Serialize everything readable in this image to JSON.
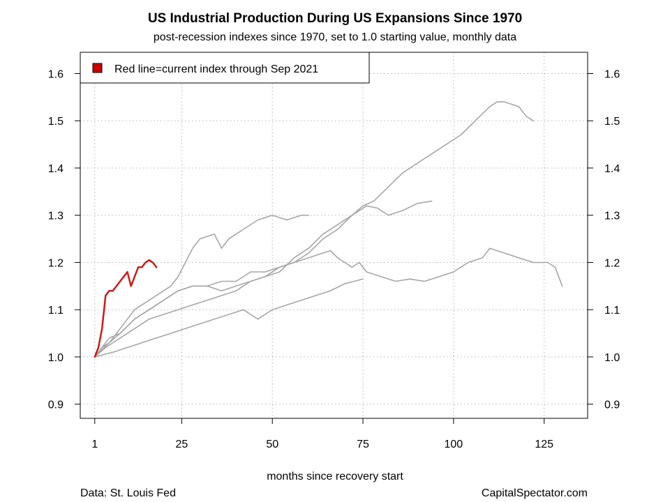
{
  "chart_data": {
    "type": "line",
    "title": "US Industrial Production During US Expansions Since 1970",
    "subtitle": "post-recession indexes since 1970, set to 1.0 starting value, monthly data",
    "xlabel": "months since recovery start",
    "ylabel": "",
    "xlim": [
      -3,
      137
    ],
    "ylim": [
      0.87,
      1.645
    ],
    "x_ticks": [
      1,
      25,
      50,
      75,
      100,
      125
    ],
    "y_ticks": [
      0.9,
      1.0,
      1.1,
      1.2,
      1.3,
      1.4,
      1.5,
      1.6
    ],
    "grid": true,
    "legend": {
      "placement": "top-left",
      "text": "Red line=current index through Sep 2021",
      "color": "#cc0000"
    },
    "footer_left": "Data: St. Louis Fed",
    "footer_right": "CapitalSpectator.com",
    "colors": {
      "history": "#a6a6a6",
      "current": "#cc1a1a",
      "grid": "#b3b3b3"
    },
    "series": [
      {
        "color": "#a6a6a6",
        "points": [
          [
            1,
            1.0
          ],
          [
            3,
            1.02
          ],
          [
            5,
            1.04
          ],
          [
            8,
            1.05
          ],
          [
            12,
            1.08
          ],
          [
            16,
            1.1
          ],
          [
            20,
            1.12
          ],
          [
            24,
            1.14
          ],
          [
            28,
            1.15
          ],
          [
            32,
            1.15
          ],
          [
            36,
            1.16
          ],
          [
            40,
            1.16
          ],
          [
            44,
            1.18
          ],
          [
            48,
            1.18
          ],
          [
            52,
            1.19
          ],
          [
            56,
            1.2
          ],
          [
            60,
            1.22
          ],
          [
            64,
            1.25
          ],
          [
            68,
            1.27
          ],
          [
            72,
            1.3
          ],
          [
            75,
            1.32
          ],
          [
            78,
            1.33
          ],
          [
            82,
            1.36
          ],
          [
            86,
            1.39
          ],
          [
            90,
            1.41
          ],
          [
            94,
            1.43
          ],
          [
            98,
            1.45
          ],
          [
            102,
            1.47
          ],
          [
            106,
            1.5
          ],
          [
            110,
            1.53
          ],
          [
            112,
            1.54
          ],
          [
            114,
            1.54
          ],
          [
            116,
            1.535
          ],
          [
            118,
            1.53
          ],
          [
            120,
            1.51
          ],
          [
            122,
            1.5
          ]
        ]
      },
      {
        "color": "#a6a6a6",
        "points": [
          [
            1,
            1.0
          ],
          [
            3,
            1.02
          ],
          [
            5,
            1.03
          ],
          [
            8,
            1.06
          ],
          [
            12,
            1.1
          ],
          [
            16,
            1.12
          ],
          [
            20,
            1.14
          ],
          [
            22,
            1.15
          ],
          [
            24,
            1.17
          ],
          [
            26,
            1.2
          ],
          [
            28,
            1.23
          ],
          [
            30,
            1.25
          ],
          [
            34,
            1.26
          ],
          [
            36,
            1.23
          ],
          [
            38,
            1.25
          ],
          [
            42,
            1.27
          ],
          [
            46,
            1.29
          ],
          [
            50,
            1.3
          ],
          [
            54,
            1.29
          ],
          [
            58,
            1.3
          ],
          [
            60,
            1.3
          ]
        ]
      },
      {
        "color": "#a6a6a6",
        "points": [
          [
            1,
            1.0
          ],
          [
            5,
            1.03
          ],
          [
            8,
            1.05
          ],
          [
            12,
            1.08
          ],
          [
            16,
            1.1
          ],
          [
            20,
            1.12
          ],
          [
            24,
            1.14
          ],
          [
            28,
            1.15
          ],
          [
            32,
            1.15
          ],
          [
            36,
            1.14
          ],
          [
            40,
            1.15
          ],
          [
            44,
            1.16
          ],
          [
            48,
            1.17
          ],
          [
            52,
            1.18
          ],
          [
            56,
            1.21
          ],
          [
            60,
            1.23
          ],
          [
            64,
            1.26
          ],
          [
            68,
            1.28
          ],
          [
            72,
            1.3
          ],
          [
            76,
            1.32
          ],
          [
            79,
            1.315
          ],
          [
            82,
            1.3
          ],
          [
            86,
            1.31
          ],
          [
            90,
            1.325
          ],
          [
            94,
            1.33
          ]
        ]
      },
      {
        "color": "#a6a6a6",
        "points": [
          [
            1,
            1.0
          ],
          [
            4,
            1.02
          ],
          [
            8,
            1.04
          ],
          [
            12,
            1.06
          ],
          [
            16,
            1.08
          ],
          [
            20,
            1.09
          ],
          [
            24,
            1.1
          ],
          [
            28,
            1.11
          ],
          [
            32,
            1.12
          ],
          [
            36,
            1.13
          ],
          [
            40,
            1.14
          ],
          [
            44,
            1.16
          ],
          [
            48,
            1.17
          ],
          [
            52,
            1.19
          ],
          [
            56,
            1.2
          ],
          [
            60,
            1.21
          ],
          [
            64,
            1.22
          ],
          [
            66,
            1.225
          ],
          [
            68,
            1.21
          ],
          [
            70,
            1.2
          ],
          [
            72,
            1.19
          ],
          [
            74,
            1.2
          ],
          [
            76,
            1.18
          ],
          [
            80,
            1.17
          ],
          [
            84,
            1.16
          ],
          [
            88,
            1.165
          ],
          [
            92,
            1.16
          ],
          [
            96,
            1.17
          ],
          [
            100,
            1.18
          ],
          [
            104,
            1.2
          ],
          [
            108,
            1.21
          ],
          [
            110,
            1.23
          ],
          [
            114,
            1.22
          ],
          [
            118,
            1.21
          ],
          [
            122,
            1.2
          ],
          [
            126,
            1.2
          ],
          [
            128,
            1.19
          ],
          [
            130,
            1.15
          ]
        ]
      },
      {
        "color": "#a6a6a6",
        "points": [
          [
            1,
            1.0
          ],
          [
            6,
            1.01
          ],
          [
            10,
            1.02
          ],
          [
            14,
            1.03
          ],
          [
            18,
            1.04
          ],
          [
            22,
            1.05
          ],
          [
            26,
            1.06
          ],
          [
            30,
            1.07
          ],
          [
            34,
            1.08
          ],
          [
            38,
            1.09
          ],
          [
            42,
            1.1
          ],
          [
            46,
            1.08
          ],
          [
            50,
            1.1
          ],
          [
            54,
            1.11
          ],
          [
            58,
            1.12
          ],
          [
            62,
            1.13
          ],
          [
            66,
            1.14
          ],
          [
            70,
            1.155
          ],
          [
            75,
            1.165
          ]
        ]
      },
      {
        "color": "#cc1a1a",
        "points": [
          [
            1,
            1.0
          ],
          [
            2,
            1.02
          ],
          [
            3,
            1.06
          ],
          [
            4,
            1.13
          ],
          [
            5,
            1.14
          ],
          [
            6,
            1.14
          ],
          [
            7,
            1.15
          ],
          [
            8,
            1.16
          ],
          [
            9,
            1.17
          ],
          [
            10,
            1.18
          ],
          [
            11,
            1.15
          ],
          [
            12,
            1.17
          ],
          [
            13,
            1.19
          ],
          [
            14,
            1.19
          ],
          [
            15,
            1.2
          ],
          [
            16,
            1.205
          ],
          [
            17,
            1.2
          ],
          [
            18,
            1.19
          ]
        ]
      }
    ]
  }
}
